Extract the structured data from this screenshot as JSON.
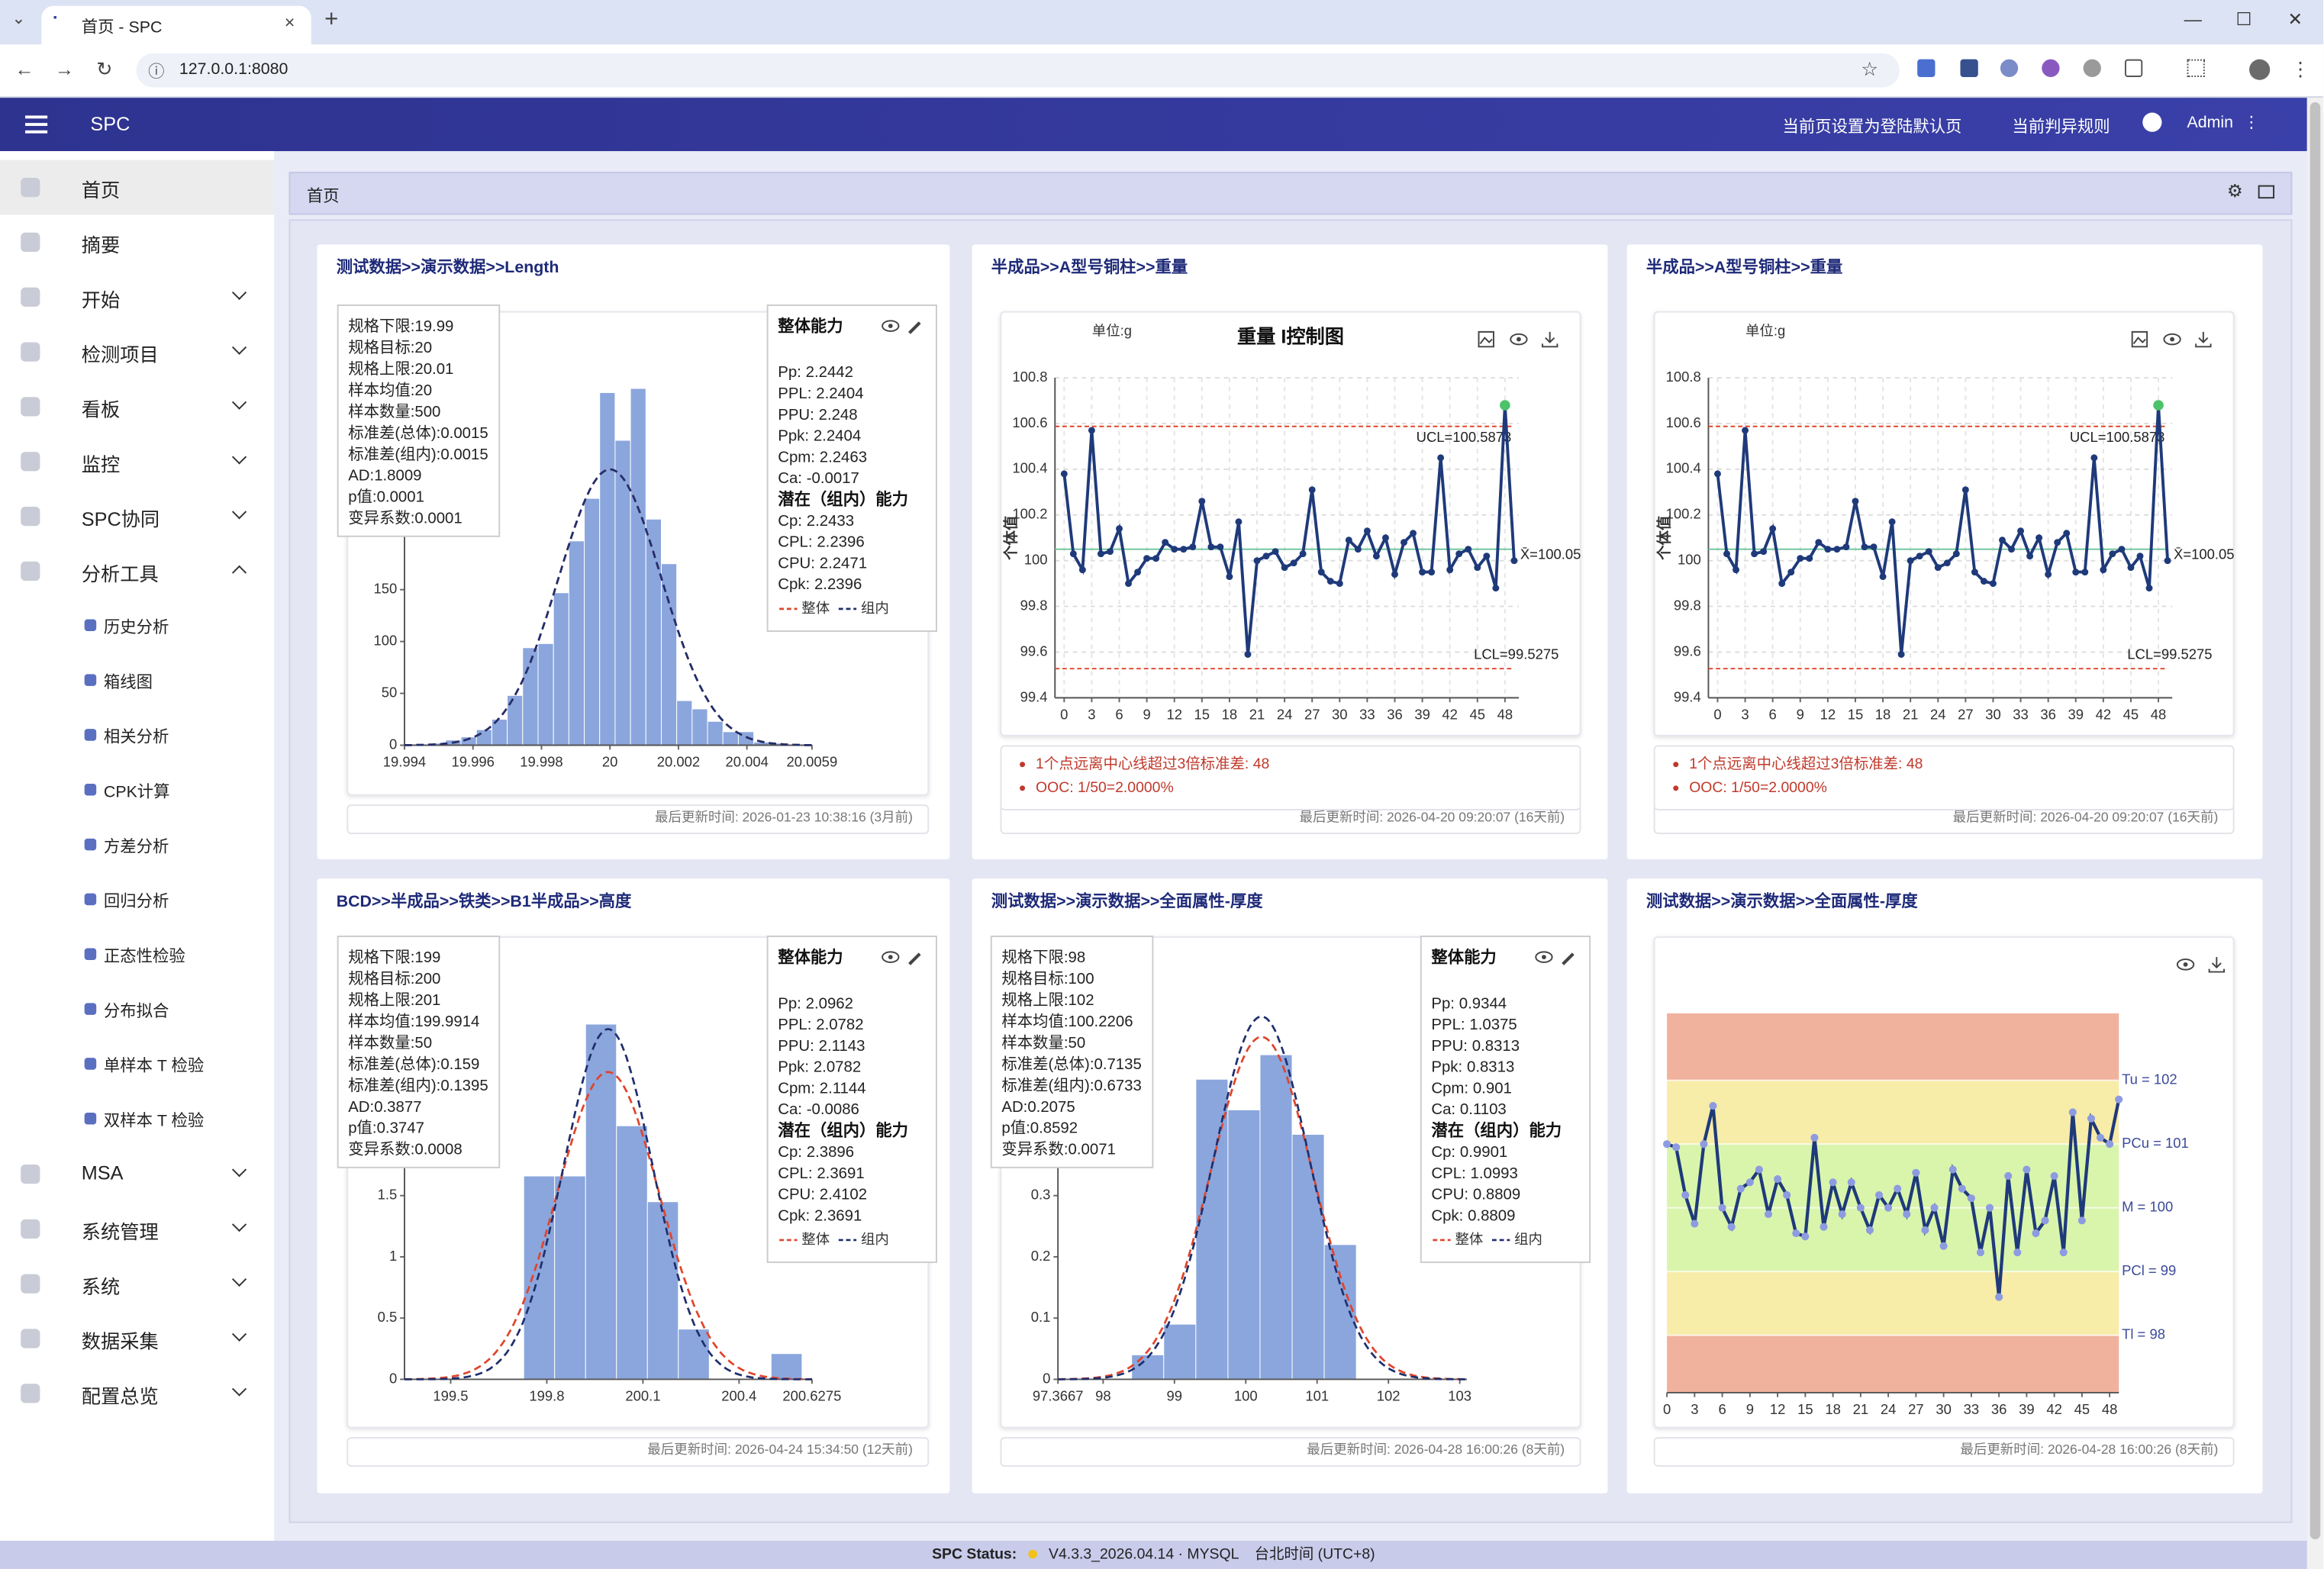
{
  "browser": {
    "tab_title": "首页 - SPC",
    "url": "127.0.0.1:8080"
  },
  "header": {
    "brand": "SPC",
    "actions": [
      "当前页设置为登陆默认页",
      "当前判异规则"
    ],
    "user": "Admin"
  },
  "sidebar": {
    "items": [
      {
        "label": "首页",
        "active": true
      },
      {
        "label": "摘要"
      },
      {
        "label": "开始",
        "expandable": true
      },
      {
        "label": "检测项目",
        "expandable": true
      },
      {
        "label": "看板",
        "expandable": true
      },
      {
        "label": "监控",
        "expandable": true
      },
      {
        "label": "SPC协同",
        "expandable": true
      },
      {
        "label": "分析工具",
        "expandable": true,
        "expanded": true,
        "children": [
          "历史分析",
          "箱线图",
          "相关分析",
          "CPK计算",
          "方差分析",
          "回归分析",
          "正态性检验",
          "分布拟合",
          "单样本 T 检验",
          "双样本 T 检验"
        ]
      },
      {
        "label": "MSA",
        "expandable": true
      },
      {
        "label": "系统管理",
        "expandable": true
      },
      {
        "label": "系统",
        "expandable": true
      },
      {
        "label": "数据采集",
        "expandable": true
      },
      {
        "label": "配置总览",
        "expandable": true
      }
    ]
  },
  "breadcrumb": "首页",
  "status": {
    "label": "SPC Status:",
    "version": "V4.3.3_2026.04.14",
    "db": "MYSQL",
    "timezone": "台北时间 (UTC+8)"
  },
  "chart_data": [
    {
      "type": "histogram",
      "title": "测试数据>>演示数据>>Length",
      "color": "#8ba6dd",
      "bins": [
        19.99475,
        19.9952,
        19.99565,
        19.9961,
        19.99655,
        19.997,
        19.99745,
        19.9979,
        19.99835,
        19.9988,
        19.99925,
        19.9997,
        20.00015,
        20.0006,
        20.00105,
        20.0015,
        20.00195,
        20.0024,
        20.00285,
        20.0033,
        20.00375,
        20.0042,
        20.00465,
        20.0051,
        20.00555
      ],
      "counts": [
        2,
        5,
        8,
        15,
        25,
        48,
        94,
        98,
        147,
        197,
        238,
        340,
        294,
        344,
        218,
        175,
        43,
        35,
        23,
        13,
        13,
        3,
        2,
        1
      ],
      "xlim": [
        19.994,
        20.0059
      ],
      "xticks": [
        19.994,
        19.996,
        19.998,
        20,
        20.002,
        20.004,
        20.0059
      ],
      "ylim": [
        0,
        400
      ],
      "yticks": [
        0,
        50,
        100,
        150
      ],
      "curve_colors": {
        "overall": "#e0452b",
        "within": "#1f2f6e"
      },
      "stats": [
        {
          "label": "规格下限:",
          "value": 19.99
        },
        {
          "label": "规格目标:",
          "value": 20
        },
        {
          "label": "规格上限:",
          "value": 20.01
        },
        {
          "label": "样本均值:",
          "value": 20
        },
        {
          "label": "样本数量:",
          "value": 500
        },
        {
          "label": "标准差(总体):",
          "value": 0.0015
        },
        {
          "label": "标准差(组内):",
          "value": 0.0015
        },
        {
          "label": "AD:",
          "value": 1.8009
        },
        {
          "label": "p值:",
          "value": 0.0001
        },
        {
          "label": "变异系数:",
          "value": 0.0001
        }
      ],
      "capability": {
        "title": "整体能力",
        "overall": [
          {
            "label": "Pp:",
            "value": 2.2442
          },
          {
            "label": "PPL:",
            "value": 2.2404
          },
          {
            "label": "PPU:",
            "value": 2.248
          },
          {
            "label": "Ppk:",
            "value": 2.2404
          },
          {
            "label": "Cpm:",
            "value": 2.2463
          },
          {
            "label": "Ca:",
            "value": -0.0017
          }
        ],
        "within_title": "潜在（组内）能力",
        "within": [
          {
            "label": "Cp:",
            "value": 2.2433
          },
          {
            "label": "CPL:",
            "value": 2.2396
          },
          {
            "label": "CPU:",
            "value": 2.2471
          },
          {
            "label": "Cpk:",
            "value": 2.2396
          }
        ],
        "legend": [
          "整体",
          "组内"
        ]
      },
      "footer": "最后更新时间: 2026-01-23 10:38:16 (3月前)"
    },
    {
      "type": "control",
      "title": "半成品>>A型号铜柱>>重量",
      "chart_title": "重量 I控制图",
      "unit": "单位:g",
      "ylabel": "个体值",
      "color": "#1f3a7a",
      "highlight_color": "#4cc36a",
      "x": [
        0,
        1,
        2,
        3,
        4,
        5,
        6,
        7,
        8,
        9,
        10,
        11,
        12,
        13,
        14,
        15,
        16,
        17,
        18,
        19,
        20,
        21,
        22,
        23,
        24,
        25,
        26,
        27,
        28,
        29,
        30,
        31,
        32,
        33,
        34,
        35,
        36,
        37,
        38,
        39,
        40,
        41,
        42,
        43,
        44,
        45,
        46,
        47,
        48,
        49
      ],
      "values": [
        100.38,
        100.03,
        99.96,
        100.57,
        100.03,
        100.04,
        100.14,
        99.9,
        99.95,
        100.01,
        100.01,
        100.08,
        100.05,
        100.05,
        100.06,
        100.26,
        100.06,
        100.06,
        99.93,
        100.17,
        99.59,
        100.0,
        100.02,
        100.04,
        99.97,
        99.99,
        100.03,
        100.31,
        99.95,
        99.91,
        99.9,
        100.09,
        100.05,
        100.13,
        100.02,
        100.1,
        99.94,
        100.08,
        100.12,
        99.95,
        99.95,
        100.45,
        99.96,
        100.03,
        100.05,
        99.97,
        100.02,
        99.88,
        100.68,
        100.0
      ],
      "xlim": [
        -1,
        49.5
      ],
      "xticks": [
        0,
        3,
        6,
        9,
        12,
        15,
        18,
        21,
        24,
        27,
        30,
        33,
        36,
        39,
        42,
        45,
        48
      ],
      "ylim": [
        99.4,
        100.8
      ],
      "yticks": [
        99.4,
        99.6,
        99.8,
        100,
        100.2,
        100.4,
        100.6,
        100.8
      ],
      "limits": {
        "ucl": {
          "value": 100.5873,
          "label": "UCL=100.5873"
        },
        "cl": {
          "value": 100.05,
          "label": "X̄=100.05"
        },
        "lcl": {
          "value": 99.5275,
          "label": "LCL=99.5275"
        }
      },
      "alerts": [
        {
          "text": "1个点远离中心线超过3倍标准差: ",
          "point": 48
        },
        {
          "text": "OOC: 1/50=2.0000%"
        }
      ],
      "footer": "最后更新时间: 2026-04-20 09:20:07 (16天前)"
    },
    {
      "type": "control",
      "title": "半成品>>A型号铜柱>>重量",
      "unit": "单位:g",
      "ylabel": "个体值",
      "color": "#1f3a7a",
      "highlight_color": "#4cc36a",
      "x": [
        0,
        1,
        2,
        3,
        4,
        5,
        6,
        7,
        8,
        9,
        10,
        11,
        12,
        13,
        14,
        15,
        16,
        17,
        18,
        19,
        20,
        21,
        22,
        23,
        24,
        25,
        26,
        27,
        28,
        29,
        30,
        31,
        32,
        33,
        34,
        35,
        36,
        37,
        38,
        39,
        40,
        41,
        42,
        43,
        44,
        45,
        46,
        47,
        48,
        49
      ],
      "values": [
        100.38,
        100.03,
        99.96,
        100.57,
        100.03,
        100.04,
        100.14,
        99.9,
        99.95,
        100.01,
        100.01,
        100.08,
        100.05,
        100.05,
        100.06,
        100.26,
        100.06,
        100.06,
        99.93,
        100.17,
        99.59,
        100.0,
        100.02,
        100.04,
        99.97,
        99.99,
        100.03,
        100.31,
        99.95,
        99.91,
        99.9,
        100.09,
        100.05,
        100.13,
        100.02,
        100.1,
        99.94,
        100.08,
        100.12,
        99.95,
        99.95,
        100.45,
        99.96,
        100.03,
        100.05,
        99.97,
        100.02,
        99.88,
        100.68,
        100.0
      ],
      "xlim": [
        -1,
        49.5
      ],
      "xticks": [
        0,
        3,
        6,
        9,
        12,
        15,
        18,
        21,
        24,
        27,
        30,
        33,
        36,
        39,
        42,
        45,
        48
      ],
      "ylim": [
        99.4,
        100.8
      ],
      "yticks": [
        99.4,
        99.6,
        99.8,
        100,
        100.2,
        100.4,
        100.6,
        100.8
      ],
      "limits": {
        "ucl": {
          "value": 100.5873,
          "label": "UCL=100.5873"
        },
        "cl": {
          "value": 100.05,
          "label": "X̄=100.05"
        },
        "lcl": {
          "value": 99.5275,
          "label": "LCL=99.5275"
        }
      },
      "alerts": [
        {
          "text": "1个点远离中心线超过3倍标准差: ",
          "point": 48
        },
        {
          "text": "OOC: 1/50=2.0000%"
        }
      ],
      "footer": "最后更新时间: 2026-04-20 09:20:07 (16天前)"
    },
    {
      "type": "histogram",
      "title": "BCD>>半成品>>铁类>>B1半成品>>高度",
      "color": "#8ba6dd",
      "bins": [
        199.728,
        199.8245,
        199.921,
        200.0175,
        200.114,
        200.2105,
        200.307,
        200.4035,
        200.5,
        200.5965
      ],
      "counts": [
        1.66,
        1.66,
        2.9,
        2.07,
        1.45,
        0.41,
        0,
        0,
        0.21
      ],
      "xlim": [
        199.356,
        200.6275
      ],
      "xticks": [
        199.5,
        199.8,
        200.1,
        200.4,
        200.6275
      ],
      "ylim": [
        0,
        3
      ],
      "yticks": [
        0,
        0.5,
        1,
        1.5
      ],
      "curve_colors": {
        "overall": "#e0452b",
        "within": "#1f2f6e"
      },
      "stats": [
        {
          "label": "规格下限:",
          "value": 199
        },
        {
          "label": "规格目标:",
          "value": 200
        },
        {
          "label": "规格上限:",
          "value": 201
        },
        {
          "label": "样本均值:",
          "value": 199.9914
        },
        {
          "label": "样本数量:",
          "value": 50
        },
        {
          "label": "标准差(总体):",
          "value": 0.159
        },
        {
          "label": "标准差(组内):",
          "value": 0.1395
        },
        {
          "label": "AD:",
          "value": 0.3877
        },
        {
          "label": "p值:",
          "value": 0.3747
        },
        {
          "label": "变异系数:",
          "value": 0.0008
        }
      ],
      "capability": {
        "title": "整体能力",
        "overall": [
          {
            "label": "Pp:",
            "value": 2.0962
          },
          {
            "label": "PPL:",
            "value": 2.0782
          },
          {
            "label": "PPU:",
            "value": 2.1143
          },
          {
            "label": "Ppk:",
            "value": 2.0782
          },
          {
            "label": "Cpm:",
            "value": 2.1144
          },
          {
            "label": "Ca:",
            "value": -0.0086
          }
        ],
        "within_title": "潜在（组内）能力",
        "within": [
          {
            "label": "Cp:",
            "value": 2.3896
          },
          {
            "label": "CPL:",
            "value": 2.3691
          },
          {
            "label": "CPU:",
            "value": 2.4102
          },
          {
            "label": "Cpk:",
            "value": 2.3691
          }
        ],
        "legend": [
          "整体",
          "组内"
        ]
      },
      "footer": "最后更新时间: 2026-04-24 15:34:50 (12天前)"
    },
    {
      "type": "histogram",
      "title": "测试数据>>演示数据>>全面属性-厚度",
      "color": "#8ba6dd",
      "bins": [
        98.4,
        98.85,
        99.3,
        99.75,
        100.2,
        100.65,
        101.1,
        101.55
      ],
      "counts": [
        0.04,
        0.09,
        0.49,
        0.44,
        0.53,
        0.4,
        0.22
      ],
      "xlim": [
        97.3667,
        103.1
      ],
      "xticks": [
        97.3667,
        98,
        99,
        100,
        101,
        102,
        103
      ],
      "ylim": [
        0,
        0.6
      ],
      "yticks": [
        0,
        0.1,
        0.2,
        0.3
      ],
      "curve_colors": {
        "overall": "#e0452b",
        "within": "#1f2f6e"
      },
      "stats": [
        {
          "label": "规格下限:",
          "value": 98
        },
        {
          "label": "规格目标:",
          "value": 100
        },
        {
          "label": "规格上限:",
          "value": 102
        },
        {
          "label": "样本均值:",
          "value": 100.2206
        },
        {
          "label": "样本数量:",
          "value": 50
        },
        {
          "label": "标准差(总体):",
          "value": 0.7135
        },
        {
          "label": "标准差(组内):",
          "value": 0.6733
        },
        {
          "label": "AD:",
          "value": 0.2075
        },
        {
          "label": "p值:",
          "value": 0.8592
        },
        {
          "label": "变异系数:",
          "value": 0.0071
        }
      ],
      "capability": {
        "title": "整体能力",
        "overall": [
          {
            "label": "Pp:",
            "value": 0.9344
          },
          {
            "label": "PPL:",
            "value": 1.0375
          },
          {
            "label": "PPU:",
            "value": 0.8313
          },
          {
            "label": "Ppk:",
            "value": 0.8313
          },
          {
            "label": "Cpm:",
            "value": 0.901
          },
          {
            "label": "Ca:",
            "value": 0.1103
          }
        ],
        "within_title": "潜在（组内）能力",
        "within": [
          {
            "label": "Cp:",
            "value": 0.9901
          },
          {
            "label": "CPL:",
            "value": 1.0993
          },
          {
            "label": "CPU:",
            "value": 0.8809
          },
          {
            "label": "Cpk:",
            "value": 0.8809
          }
        ],
        "legend": [
          "整体",
          "组内"
        ]
      },
      "footer": "最后更新时间: 2026-04-28 16:00:26 (8天前)"
    },
    {
      "type": "zone",
      "title": "测试数据>>演示数据>>全面属性-厚度",
      "color": "#1f3a7a",
      "point_color": "#8d9be0",
      "x": [
        0,
        1,
        2,
        3,
        4,
        5,
        6,
        7,
        8,
        9,
        10,
        11,
        12,
        13,
        14,
        15,
        16,
        17,
        18,
        19,
        20,
        21,
        22,
        23,
        24,
        25,
        26,
        27,
        28,
        29,
        30,
        31,
        32,
        33,
        34,
        35,
        36,
        37,
        38,
        39,
        40,
        41,
        42,
        43,
        44,
        45,
        46,
        47,
        48,
        49
      ],
      "values": [
        101.0,
        100.95,
        100.2,
        99.75,
        101.0,
        101.6,
        100.0,
        99.7,
        100.3,
        100.4,
        100.6,
        99.9,
        100.45,
        100.2,
        99.6,
        99.55,
        101.1,
        99.7,
        100.4,
        99.9,
        100.4,
        100.0,
        99.65,
        100.2,
        100.0,
        100.3,
        99.9,
        100.55,
        99.65,
        100.0,
        99.4,
        100.6,
        100.3,
        100.15,
        99.3,
        100.0,
        98.6,
        100.5,
        99.3,
        100.6,
        99.6,
        99.8,
        100.5,
        99.3,
        101.5,
        99.8,
        101.4,
        101.1,
        101.0,
        101.7
      ],
      "xlim": [
        0,
        49
      ],
      "xticks": [
        0,
        3,
        6,
        9,
        12,
        15,
        18,
        21,
        24,
        27,
        30,
        33,
        36,
        39,
        42,
        45,
        48
      ],
      "ylim": [
        97.1,
        103.05
      ],
      "zones": [
        {
          "value": 102,
          "label": "Tu = 102"
        },
        {
          "value": 101,
          "label": "PCu = 101"
        },
        {
          "value": 100,
          "label": "M = 100"
        },
        {
          "value": 99,
          "label": "PCl = 99"
        },
        {
          "value": 98,
          "label": "Tl = 98"
        }
      ],
      "zone_colors": {
        "limit": "#f0b29c",
        "warning": "#f7eca8",
        "center": "#d9f5ac"
      },
      "footer": "最后更新时间: 2026-04-28 16:00:26 (8天前)"
    }
  ]
}
